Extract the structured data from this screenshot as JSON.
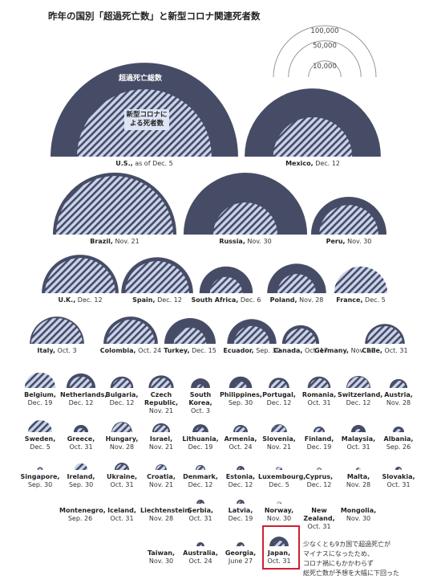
{
  "chart_data": {
    "type": "semicircle",
    "title": "昨年の国別「超過死亡数」と新型コロナ関連死者数",
    "legend": [
      {
        "value": 100000,
        "label": "100,000"
      },
      {
        "value": 50000,
        "label": "50,000"
      },
      {
        "value": 10000,
        "label": "10,000"
      }
    ],
    "categories": [
      "U.S.,",
      "Mexico,",
      "Brazil,",
      "Russia,",
      "Peru,",
      "U.K.,",
      "Spain,",
      "South Africa,",
      "Poland,",
      "France,",
      "Italy,",
      "Colombia,",
      "Turkey,",
      "Ecuador,",
      "Canada,",
      "Germany,",
      "Chile,",
      "Belgium,",
      "Netherlands,",
      "Bulgaria,",
      "Czech Republic,",
      "South Korea,",
      "Philippines,",
      "Portugal,",
      "Romania,",
      "Switzerland,",
      "Austria,",
      "Sweden,",
      "Greece,",
      "Hungary,",
      "Israel,",
      "Lithuania,",
      "Armenia,",
      "Slovenia,",
      "Finland,",
      "Malaysia,",
      "Albania,",
      "Singapore,",
      "Ireland,",
      "Ukraine,",
      "Croatia,",
      "Denmark,",
      "Estonia,",
      "Luxembourg,",
      "Cyprus,",
      "Malta,",
      "Slovakia,",
      "Montenegro,",
      "Iceland,",
      "Liechtenstein,",
      "Serbia,",
      "Latvia,",
      "Norway,",
      "New Zealand,",
      "Mongolia,",
      "Taiwan,",
      "Australia,",
      "Georgia,",
      "Japan,"
    ],
    "dates": [
      "as of Dec. 5",
      "Dec. 12",
      "Nov. 21",
      "Nov. 30",
      "Nov. 30",
      "Dec. 12",
      "Dec. 12",
      "Dec. 6",
      "Nov. 28",
      "Dec. 5",
      "Oct. 3",
      "Oct. 24",
      "Dec. 15",
      "Sep. 30",
      "Oct. 17",
      "Nov. 28",
      "Oct. 31",
      "Dec. 19",
      "Dec. 12",
      "Dec. 12",
      "Nov. 21",
      "Oct. 3",
      "Sep. 30",
      "Dec. 12",
      "Oct. 31",
      "Dec. 12",
      "Nov. 28",
      "Dec. 5",
      "Oct. 31",
      "Nov. 28",
      "Nov. 21",
      "Dec. 19",
      "Oct. 24",
      "Nov. 21",
      "Dec. 19",
      "Oct. 31",
      "Sep. 26",
      "Sep. 30",
      "Sep. 30",
      "Oct. 31",
      "Nov. 21",
      "Dec. 12",
      "Dec. 12",
      "Dec. 5",
      "Dec. 12",
      "Nov. 28",
      "Oct. 31",
      "Sep. 26",
      "Oct. 31",
      "Nov. 28",
      "Oct. 31",
      "Dec. 19",
      "Nov. 30",
      "Oct. 31",
      "Nov. 30",
      "Nov. 30",
      "Oct. 24",
      "June 27",
      "Oct. 31"
    ],
    "series": [
      {
        "name": "超過死亡総数",
        "color": "#474c66",
        "values": [
          334000,
          176000,
          145000,
          145000,
          54000,
          56000,
          49000,
          27000,
          33000,
          25000,
          28000,
          28000,
          25000,
          23000,
          13000,
          0,
          15000,
          8000,
          8000,
          5000,
          6000,
          3500,
          5000,
          4000,
          5000,
          5500,
          3000,
          4500,
          2000,
          4000,
          3000,
          2400,
          2000,
          2400,
          1200,
          2000,
          1200,
          300,
          1600,
          2000,
          1200,
          900,
          600,
          400,
          200,
          200,
          400,
          0,
          0,
          0,
          600,
          600,
          200,
          0,
          0,
          0,
          600,
          600,
          3500
        ]
      },
      {
        "name": "新型コロナによる死者数",
        "color": "#c9d3ea",
        "values": [
          172000,
          59000,
          130000,
          39000,
          33000,
          47000,
          39000,
          10000,
          14000,
          27000,
          25000,
          22000,
          10000,
          12000,
          9000,
          0,
          12000,
          9000,
          5000,
          3500,
          4000,
          500,
          1500,
          2500,
          3500,
          4800,
          2000,
          5500,
          600,
          3500,
          2000,
          900,
          1200,
          2000,
          600,
          400,
          400,
          100,
          1600,
          1200,
          900,
          600,
          200,
          400,
          100,
          200,
          200,
          0,
          0,
          0,
          200,
          200,
          200,
          0,
          0,
          0,
          100,
          200,
          1200
        ]
      }
    ],
    "annotation": [
      "少なくとも9カ国で超過死亡が",
      "マイナスになったため、",
      "コロナ禍にもかかわらず",
      "総死亡数が予想を大幅に下回った"
    ]
  }
}
